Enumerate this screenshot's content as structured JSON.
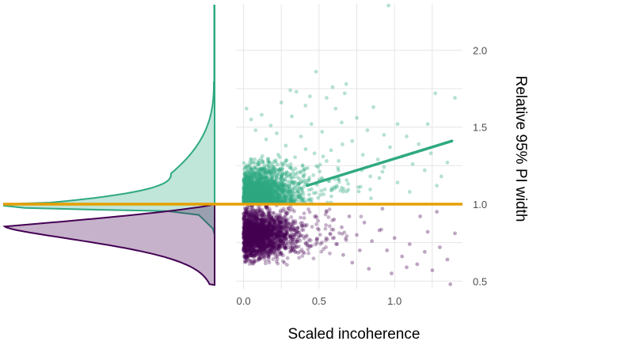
{
  "chart_data": {
    "type": "scatter",
    "xlabel": "Scaled incoherence",
    "ylabel": "Relative 95% PI width",
    "xlim": [
      -0.05,
      1.45
    ],
    "ylim": [
      0.45,
      2.3
    ],
    "x_ticks": [
      0.0,
      0.5,
      1.0
    ],
    "x_tick_labels": [
      "0.0",
      "0.5",
      "1.0"
    ],
    "x_minor_ticks": [
      0.25,
      0.75,
      1.25
    ],
    "y_ticks": [
      0.5,
      1.0,
      1.5,
      2.0
    ],
    "y_tick_labels": [
      "0.5",
      "1.0",
      "1.5",
      "2.0"
    ],
    "y_minor_ticks": [
      0.75,
      1.25,
      1.75
    ],
    "reference_line": {
      "y": 1.0,
      "color": "#E69F00"
    },
    "colors": {
      "above": "#2FA982",
      "below": "#440154",
      "reference": "#E69F00"
    },
    "series": [
      {
        "name": "above",
        "color": "#2FA982",
        "trend": {
          "x": [
            0.42,
            1.38
          ],
          "y": [
            1.12,
            1.41
          ]
        },
        "points": [
          [
            0.02,
            1.62
          ],
          [
            0.05,
            1.55
          ],
          [
            0.08,
            1.48
          ],
          [
            0.12,
            1.58
          ],
          [
            0.15,
            1.42
          ],
          [
            0.18,
            1.51
          ],
          [
            0.22,
            1.46
          ],
          [
            0.25,
            1.66
          ],
          [
            0.28,
            1.38
          ],
          [
            0.32,
            1.57
          ],
          [
            0.35,
            1.73
          ],
          [
            0.38,
            1.44
          ],
          [
            0.41,
            1.64
          ],
          [
            0.45,
            1.52
          ],
          [
            0.48,
            1.86
          ],
          [
            0.52,
            1.47
          ],
          [
            0.55,
            1.69
          ],
          [
            0.58,
            1.35
          ],
          [
            0.61,
            1.62
          ],
          [
            0.65,
            1.53
          ],
          [
            0.68,
            1.78
          ],
          [
            0.72,
            1.41
          ],
          [
            0.75,
            1.56
          ],
          [
            0.79,
            1.32
          ],
          [
            0.82,
            1.48
          ],
          [
            0.86,
            1.63
          ],
          [
            0.89,
            1.29
          ],
          [
            0.93,
            1.45
          ],
          [
            0.97,
            1.37
          ],
          [
            1.02,
            1.52
          ],
          [
            1.05,
            1.31
          ],
          [
            1.08,
            1.44
          ],
          [
            1.12,
            1.26
          ],
          [
            1.16,
            1.39
          ],
          [
            1.2,
            1.22
          ],
          [
            1.24,
            1.33
          ],
          [
            1.27,
            1.72
          ],
          [
            1.31,
            1.18
          ],
          [
            1.35,
            1.27
          ],
          [
            1.4,
            1.69
          ],
          [
            0.96,
            2.29
          ],
          [
            0.67,
            1.72
          ],
          [
            0.59,
            1.76
          ],
          [
            0.44,
            1.7
          ],
          [
            0.31,
            1.74
          ],
          [
            1.22,
            1.52
          ],
          [
            1.1,
            1.08
          ],
          [
            1.28,
            1.12
          ],
          [
            0.84,
            1.18
          ],
          [
            0.76,
            1.11
          ],
          [
            0.92,
            1.21
          ],
          [
            1.02,
            1.14
          ],
          [
            0.63,
            1.16
          ],
          [
            0.55,
            1.28
          ],
          [
            0.47,
            1.33
          ]
        ]
      },
      {
        "name": "below",
        "color": "#440154",
        "points": [
          [
            0.55,
            0.95
          ],
          [
            0.6,
            0.9
          ],
          [
            0.65,
            0.85
          ],
          [
            0.7,
            0.92
          ],
          [
            0.75,
            0.8
          ],
          [
            0.8,
            0.88
          ],
          [
            0.85,
            0.76
          ],
          [
            0.9,
            0.83
          ],
          [
            0.95,
            0.7
          ],
          [
            1.0,
            0.78
          ],
          [
            1.05,
            0.66
          ],
          [
            1.1,
            0.74
          ],
          [
            1.15,
            0.61
          ],
          [
            1.2,
            0.69
          ],
          [
            1.25,
            0.57
          ],
          [
            1.3,
            0.72
          ],
          [
            1.35,
            0.64
          ],
          [
            1.4,
            0.81
          ],
          [
            1.22,
            0.82
          ],
          [
            1.17,
            0.92
          ],
          [
            0.72,
            0.62
          ],
          [
            0.83,
            0.58
          ],
          [
            0.98,
            0.55
          ],
          [
            1.08,
            0.59
          ],
          [
            0.66,
            0.67
          ],
          [
            1.37,
            0.48
          ],
          [
            1.28,
            0.95
          ],
          [
            0.92,
            0.97
          ],
          [
            0.62,
            0.74
          ],
          [
            0.77,
            0.7
          ]
        ]
      }
    ]
  }
}
